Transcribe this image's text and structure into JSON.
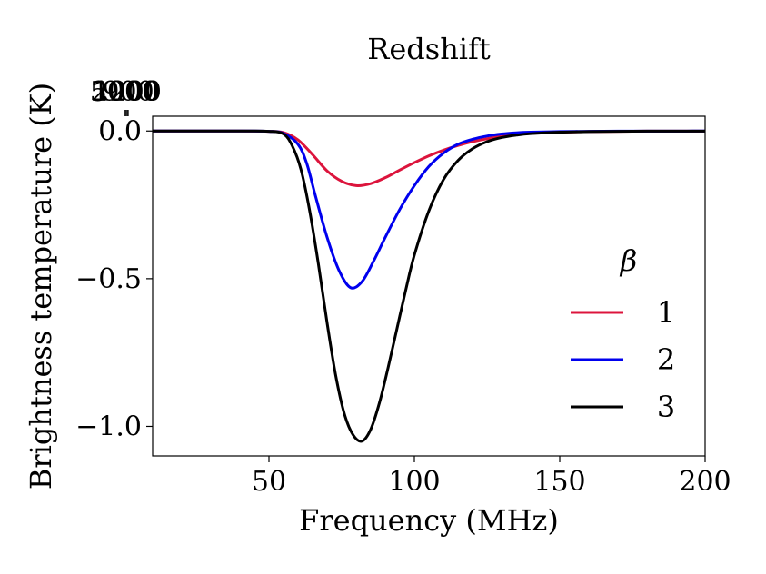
{
  "chart_data": {
    "type": "line",
    "xlabel": "Frequency (MHz)",
    "ylabel": "Brightness temperature (K)",
    "top_axis_label": "Redshift",
    "xlim": [
      10,
      200
    ],
    "ylim": [
      -1.1,
      0.05
    ],
    "x_ticks": [
      50,
      100,
      150,
      200
    ],
    "x_tick_labels": [
      "50",
      "100",
      "150",
      "200"
    ],
    "y_ticks": [
      0.0,
      -0.5,
      -1.0
    ],
    "y_tick_labels": [
      "0.0",
      "−0.5",
      "−1.0"
    ],
    "top_ticks": [
      5000,
      2000,
      1200,
      900
    ],
    "top_tick_labels": [
      "5000",
      "2000",
      "1200",
      "900"
    ],
    "top_axis_reference_mhz": 1420.4,
    "legend": {
      "title": "β",
      "placement": "center-right"
    },
    "series": [
      {
        "name": "1",
        "color": "#dc143c",
        "x": [
          10,
          40,
          50,
          55,
          60,
          65,
          70,
          75,
          80,
          85,
          90,
          95,
          100,
          105,
          110,
          115,
          120,
          125,
          130,
          135,
          140,
          150,
          160,
          170,
          180,
          190,
          200
        ],
        "y": [
          0,
          0,
          -0.001,
          -0.005,
          -0.03,
          -0.08,
          -0.135,
          -0.17,
          -0.185,
          -0.178,
          -0.158,
          -0.132,
          -0.107,
          -0.084,
          -0.065,
          -0.049,
          -0.036,
          -0.026,
          -0.018,
          -0.012,
          -0.008,
          -0.004,
          -0.002,
          -0.001,
          -0.0005,
          -0.0003,
          -0.0002
        ]
      },
      {
        "name": "2",
        "color": "#0000ee",
        "x": [
          10,
          40,
          50,
          55,
          60,
          63,
          66,
          70,
          74,
          78,
          82,
          86,
          90,
          95,
          100,
          105,
          110,
          115,
          120,
          125,
          130,
          135,
          140,
          150,
          160,
          170,
          180,
          190,
          200
        ],
        "y": [
          0,
          0,
          -0.001,
          -0.008,
          -0.045,
          -0.11,
          -0.22,
          -0.36,
          -0.47,
          -0.53,
          -0.51,
          -0.44,
          -0.36,
          -0.265,
          -0.185,
          -0.12,
          -0.075,
          -0.045,
          -0.028,
          -0.017,
          -0.01,
          -0.006,
          -0.004,
          -0.002,
          -0.001,
          -0.0005,
          -0.0003,
          -0.0002,
          -0.0001
        ]
      },
      {
        "name": "3",
        "color": "#000000",
        "x": [
          10,
          40,
          50,
          55,
          58,
          61,
          64,
          67,
          70,
          73,
          76,
          79,
          82,
          85,
          88,
          91,
          94,
          97,
          100,
          105,
          110,
          115,
          120,
          125,
          130,
          135,
          140,
          150,
          160,
          170,
          180,
          190,
          200
        ],
        "y": [
          0,
          0,
          -0.001,
          -0.01,
          -0.05,
          -0.13,
          -0.27,
          -0.45,
          -0.65,
          -0.83,
          -0.96,
          -1.03,
          -1.05,
          -1.01,
          -0.92,
          -0.8,
          -0.67,
          -0.54,
          -0.42,
          -0.27,
          -0.165,
          -0.1,
          -0.06,
          -0.036,
          -0.022,
          -0.014,
          -0.009,
          -0.004,
          -0.002,
          -0.001,
          -0.0005,
          -0.0003,
          -0.0002
        ]
      }
    ]
  }
}
